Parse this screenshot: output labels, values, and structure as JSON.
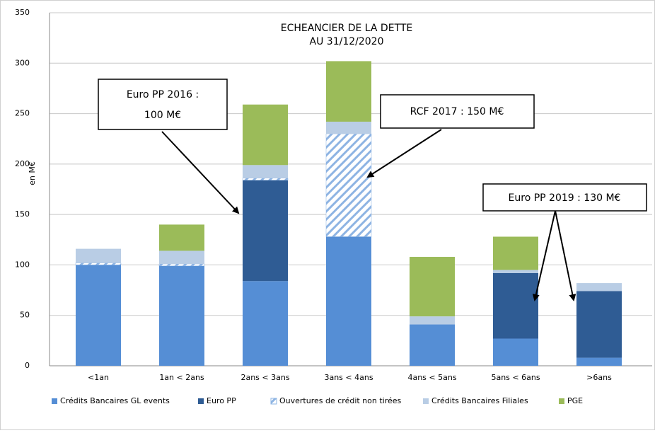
{
  "chart_data": {
    "type": "stacked_bar",
    "title": [
      "ECHEANCIER DE LA DETTE",
      "AU 31/12/2020"
    ],
    "y_label": "en M€",
    "categories": [
      "<1an",
      "1an < 2ans",
      "2ans < 3ans",
      "3ans < 4ans",
      "4ans < 5ans",
      "5ans < 6ans",
      ">6ans"
    ],
    "series": [
      {
        "name": "Crédits Bancaires GL events",
        "color": "#558ED5",
        "values": [
          100,
          99,
          84,
          128,
          41,
          27,
          8
        ]
      },
      {
        "name": "Euro PP",
        "color": "#2F5C94",
        "values": [
          0,
          0,
          100,
          0,
          0,
          65,
          66
        ]
      },
      {
        "name": "Ouvertures de crédit non tirées",
        "color": "#8EB4E3",
        "hatch": true,
        "values": [
          2,
          2,
          2,
          102,
          0,
          0,
          0
        ]
      },
      {
        "name": "Crédits Bancaires Filiales",
        "color": "#B9CDE5",
        "values": [
          14,
          13,
          13,
          12,
          8,
          3,
          8
        ]
      },
      {
        "name": "PGE",
        "color": "#9BBB59",
        "values": [
          0,
          26,
          60,
          60,
          59,
          33,
          0
        ]
      }
    ],
    "ylim": [
      0,
      350
    ],
    "yticks": [
      0,
      50,
      100,
      150,
      200,
      250,
      300,
      350
    ],
    "grid": true,
    "legend": "bottom",
    "annotations": [
      [
        "Euro PP 2016 :",
        "100 M€"
      ],
      [
        "RCF 2017 : 150 M€"
      ],
      [
        "Euro PP 2019 : 130 M€"
      ]
    ]
  }
}
